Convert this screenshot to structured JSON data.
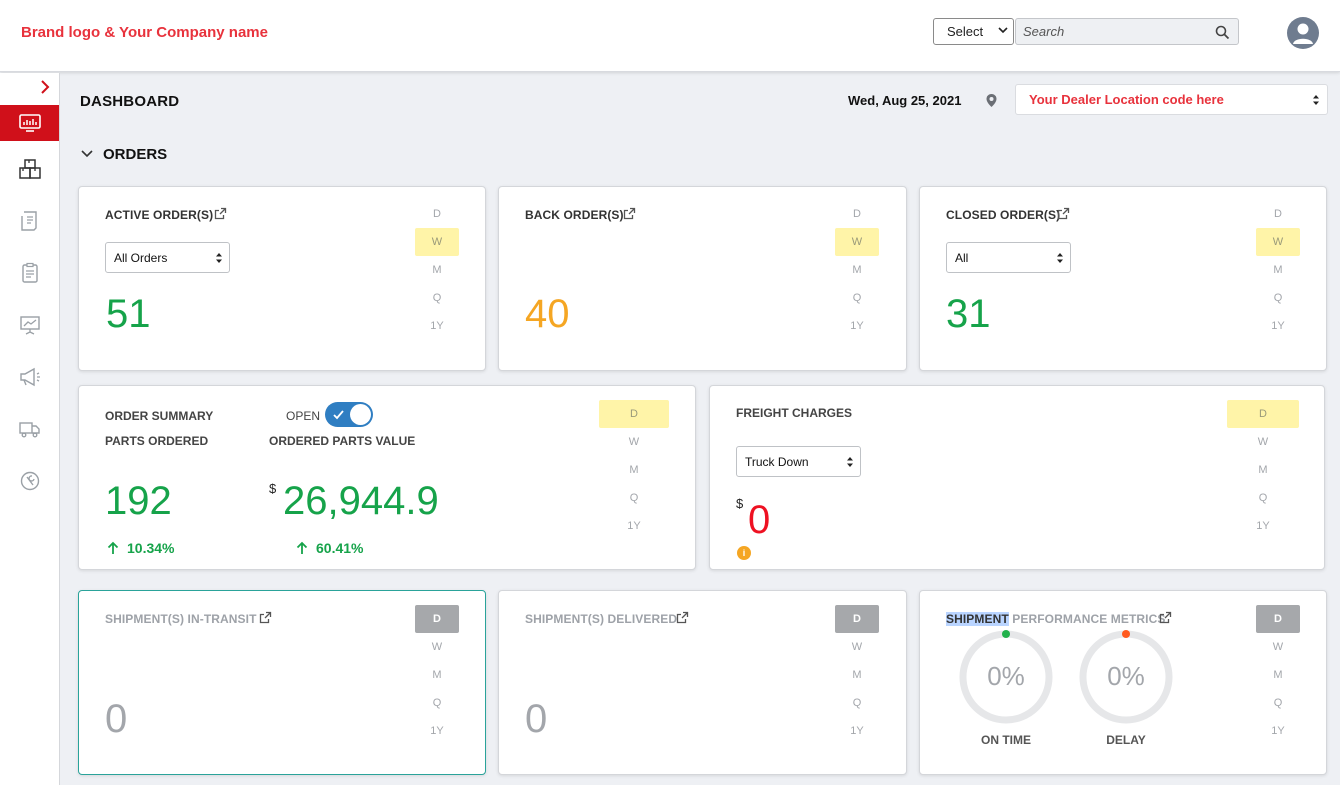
{
  "header": {
    "brand": "Brand logo & Your Company name",
    "select_value": "Select",
    "search_placeholder": "Search"
  },
  "sidebar": {
    "items": [
      {
        "icon": "monitor-dashboard-icon",
        "active": true
      },
      {
        "icon": "boxes-icon"
      },
      {
        "icon": "receipt-icon"
      },
      {
        "icon": "clipboard-check-icon"
      },
      {
        "icon": "presentation-chart-icon"
      },
      {
        "icon": "megaphone-icon"
      },
      {
        "icon": "delivery-truck-icon"
      },
      {
        "icon": "support-wrench-icon"
      }
    ]
  },
  "page": {
    "title": "DASHBOARD",
    "date": "Wed, Aug 25, 2021",
    "location": "Your Dealer Location code here",
    "section": "ORDERS"
  },
  "periods": [
    "D",
    "W",
    "M",
    "Q",
    "1Y"
  ],
  "cards": {
    "active_orders": {
      "title": "ACTIVE ORDER(S)",
      "filter": "All Orders",
      "value": "51",
      "selected_period": "W"
    },
    "back_orders": {
      "title": "BACK ORDER(S)",
      "value": "40",
      "selected_period": "W"
    },
    "closed_orders": {
      "title": "CLOSED ORDER(S)",
      "filter": "All",
      "value": "31",
      "selected_period": "W"
    },
    "order_summary": {
      "title": "ORDER SUMMARY",
      "toggle_label": "OPEN",
      "toggle_on": true,
      "parts_label": "PARTS ORDERED",
      "value_label": "ORDERED PARTS VALUE",
      "parts_value": "192",
      "currency": "$",
      "parts_amount": "26,944.9",
      "parts_delta": "10.34%",
      "amount_delta": "60.41%",
      "selected_period": "D"
    },
    "freight": {
      "title": "FREIGHT CHARGES",
      "filter": "Truck Down",
      "currency": "$",
      "value": "0",
      "info": "i",
      "selected_period": "D"
    },
    "in_transit": {
      "title": "SHIPMENT(S) IN-TRANSIT",
      "value": "0",
      "selected_period": "D"
    },
    "delivered": {
      "title": "SHIPMENT(S) DELIVERED",
      "value": "0",
      "selected_period": "D"
    },
    "performance": {
      "title_highlight": "SHIPMENT",
      "title_rest": " PERFORMANCE METRICS",
      "on_time_value": "0%",
      "on_time_label": "ON TIME",
      "delay_value": "0%",
      "delay_label": "DELAY",
      "selected_period": "D"
    }
  },
  "colors": {
    "brand_red": "#e8323c",
    "sidebar_active": "#d0101a",
    "positive": "#16a34a",
    "warning": "#f5a623",
    "negative": "#ee1122",
    "on_time_dot": "#22b14c",
    "delay_dot": "#ff5a1f"
  }
}
